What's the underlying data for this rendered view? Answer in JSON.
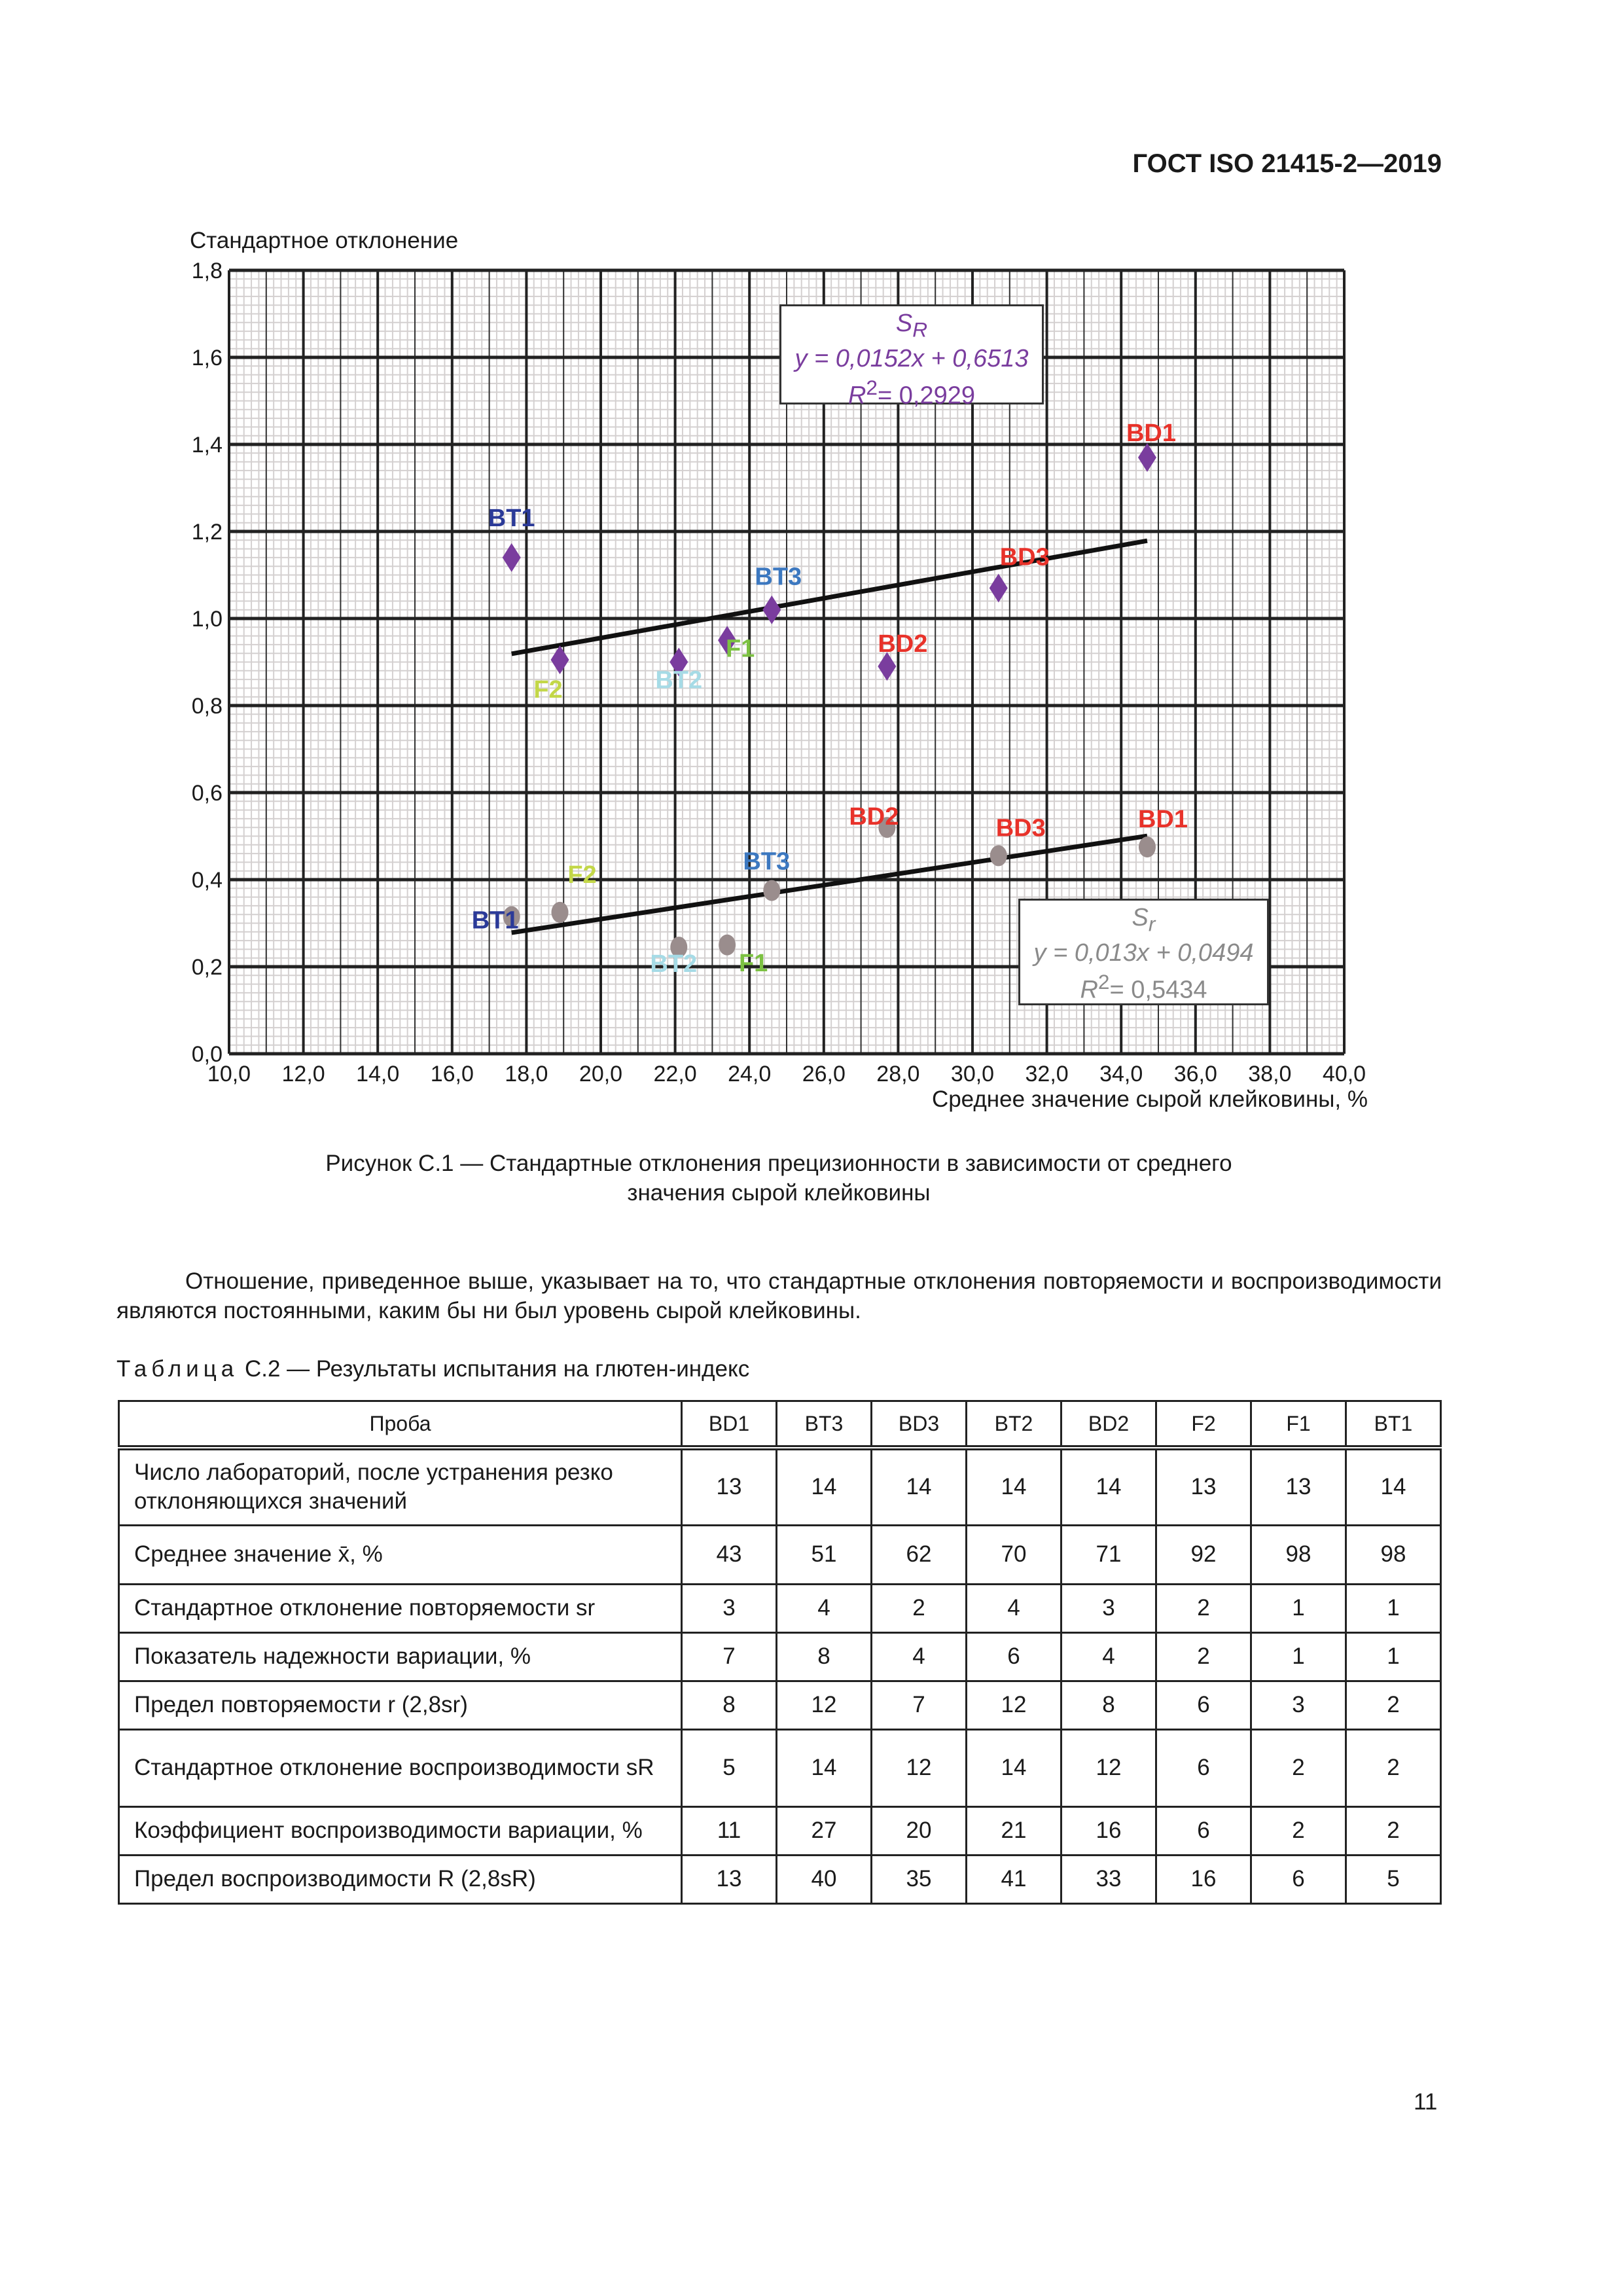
{
  "header": {
    "doc_id": "ГОСТ ISO 21415-2—2019"
  },
  "chart_data": {
    "type": "scatter",
    "ylabel": "Стандартное отклонение",
    "xlabel": "Среднее значение сырой клейковины, %",
    "xlim": [
      10,
      40
    ],
    "ylim": [
      0,
      1.8
    ],
    "x_ticks": [
      "10,0",
      "12,0",
      "14,0",
      "16,0",
      "18,0",
      "20,0",
      "22,0",
      "24,0",
      "26,0",
      "28,0",
      "30,0",
      "32,0",
      "34,0",
      "36,0",
      "38,0",
      "40,0"
    ],
    "y_ticks": [
      "0,0",
      "0,2",
      "0,4",
      "0,6",
      "0,8",
      "1,0",
      "1,2",
      "1,4",
      "1,6",
      "1,8"
    ],
    "grid": true,
    "label_colors": {
      "BT1": "#2b3a98",
      "BT2": "#a6dbe6",
      "BT3": "#3c78c0",
      "F1": "#7cc142",
      "F2": "#c3d748",
      "BD1": "#e8322a",
      "BD2": "#e8322a",
      "BD3": "#e8322a"
    },
    "series": [
      {
        "name": "S_R",
        "marker": "diamond",
        "color": "#7a3d9e",
        "points": [
          {
            "label": "BT1",
            "x": 17.6,
            "y": 1.14
          },
          {
            "label": "F2",
            "x": 18.9,
            "y": 0.905
          },
          {
            "label": "BT2",
            "x": 22.1,
            "y": 0.9
          },
          {
            "label": "F1",
            "x": 23.4,
            "y": 0.95
          },
          {
            "label": "BT3",
            "x": 24.6,
            "y": 1.02
          },
          {
            "label": "BD2",
            "x": 27.7,
            "y": 0.89
          },
          {
            "label": "BD3",
            "x": 30.7,
            "y": 1.07
          },
          {
            "label": "BD1",
            "x": 34.7,
            "y": 1.37
          }
        ],
        "trend": {
          "slope": 0.0152,
          "intercept": 0.6513,
          "x_range": [
            17.6,
            34.7
          ]
        },
        "box": {
          "symbol": "S",
          "sub": "R",
          "equation": "y = 0,0152x + 0,6513",
          "r2_label": "R",
          "r2_sup": "2",
          "r2_value": "= 0,2929",
          "color": "#7a3d9e"
        }
      },
      {
        "name": "S_r",
        "marker": "circle",
        "color": "#9a8d8d",
        "points": [
          {
            "label": "BT1",
            "x": 17.6,
            "y": 0.315
          },
          {
            "label": "F2",
            "x": 18.9,
            "y": 0.325
          },
          {
            "label": "BT2",
            "x": 22.1,
            "y": 0.245
          },
          {
            "label": "F1",
            "x": 23.4,
            "y": 0.25
          },
          {
            "label": "BT3",
            "x": 24.6,
            "y": 0.375
          },
          {
            "label": "BD2",
            "x": 27.7,
            "y": 0.52
          },
          {
            "label": "BD3",
            "x": 30.7,
            "y": 0.455
          },
          {
            "label": "BD1",
            "x": 34.7,
            "y": 0.475
          }
        ],
        "trend": {
          "slope": 0.013,
          "intercept": 0.0494,
          "x_range": [
            17.6,
            34.7
          ]
        },
        "box": {
          "symbol": "S",
          "sub": "r",
          "equation": "y = 0,013x + 0,0494",
          "r2_label": "R",
          "r2_sup": "2",
          "r2_value": "= 0,5434",
          "color": "#8a8a8a"
        }
      }
    ]
  },
  "caption": {
    "line1": "Рисунок С.1 — Стандартные отклонения прецизионности в зависимости от среднего",
    "line2": "значения сырой клейковины"
  },
  "paragraph": "Отношение, приведенное выше, указывает на то, что стандартные отклонения повторяемости и воспроизво­димости являются постоянными, каким бы ни был уровень сырой клейковины.",
  "table": {
    "title_prefix": "Таблица",
    "title": " С.2 — Результаты испытания на глютен-индекс",
    "header_label": "Проба",
    "columns": [
      "BD1",
      "BT3",
      "BD3",
      "BT2",
      "BD2",
      "F2",
      "F1",
      "BT1"
    ],
    "rows": [
      {
        "label": "Число лабораторий, после устранения резко отклоняющихся значений",
        "values": [
          "13",
          "14",
          "14",
          "14",
          "14",
          "13",
          "13",
          "14"
        ]
      },
      {
        "label": "Среднее значение x̄, %",
        "values": [
          "43",
          "51",
          "62",
          "70",
          "71",
          "92",
          "98",
          "98"
        ]
      },
      {
        "label": "Стандартное отклонение повторяемости sr",
        "values": [
          "3",
          "4",
          "2",
          "4",
          "3",
          "2",
          "1",
          "1"
        ]
      },
      {
        "label": "Показатель надежности вариации, %",
        "values": [
          "7",
          "8",
          "4",
          "6",
          "4",
          "2",
          "1",
          "1"
        ]
      },
      {
        "label": "Предел повторяемости r (2,8sr)",
        "values": [
          "8",
          "12",
          "7",
          "12",
          "8",
          "6",
          "3",
          "2"
        ]
      },
      {
        "label": "Стандартное отклонение воспроизводимости sR",
        "values": [
          "5",
          "14",
          "12",
          "14",
          "12",
          "6",
          "2",
          "2"
        ]
      },
      {
        "label": "Коэффициент воспроизводимости вариации, %",
        "values": [
          "11",
          "27",
          "20",
          "21",
          "16",
          "6",
          "2",
          "2"
        ]
      },
      {
        "label": "Предел воспроизводимости R (2,8sR)",
        "values": [
          "13",
          "40",
          "35",
          "41",
          "33",
          "16",
          "6",
          "5"
        ]
      }
    ]
  },
  "page_number": "11"
}
